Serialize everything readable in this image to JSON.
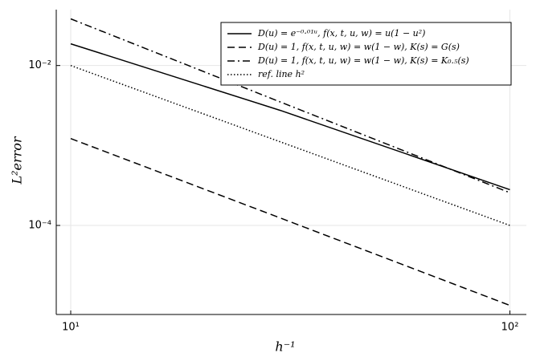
{
  "chart_data": {
    "type": "line",
    "xlabel": "h⁻¹",
    "ylabel": "L²error",
    "xscale": "log",
    "yscale": "log",
    "xlim": [
      9.27,
      109
    ],
    "ylim": [
      7.7e-06,
      0.05
    ],
    "xticks": [
      {
        "value": 10,
        "label": "10¹"
      },
      {
        "value": 100,
        "label": "10²"
      }
    ],
    "yticks": [
      {
        "value": 0.01,
        "label": "10⁻²"
      },
      {
        "value": 0.0001,
        "label": "10⁻⁴"
      }
    ],
    "grid": true,
    "legend": "top-right",
    "x": [
      10,
      30,
      100
    ],
    "series": [
      {
        "name": "D(u) = e⁻⁰·⁰¹ᵘ, f(x, t, u, w) = u(1 − u²)",
        "color": "#000000",
        "linestyle": "solid",
        "values": [
          0.0187,
          0.00275,
          0.00028
        ]
      },
      {
        "name": "D(u) = 1, f(x, t, u, w) = w(1 − w), K(s) = G(s)",
        "color": "#000000",
        "linestyle": "dash",
        "values": [
          0.00122,
          0.000124,
          1e-05
        ]
      },
      {
        "name": "D(u) = 1, f(x, t, u, w) = w(1 − w), K(s) = K₀.₅(s)",
        "color": "#000000",
        "linestyle": "dashdot",
        "values": [
          0.0383,
          0.0035,
          0.000257
        ]
      },
      {
        "name": "ref. line h²",
        "color": "#000000",
        "linestyle": "dot",
        "values": [
          0.01,
          0.00111,
          0.0001
        ]
      }
    ]
  }
}
